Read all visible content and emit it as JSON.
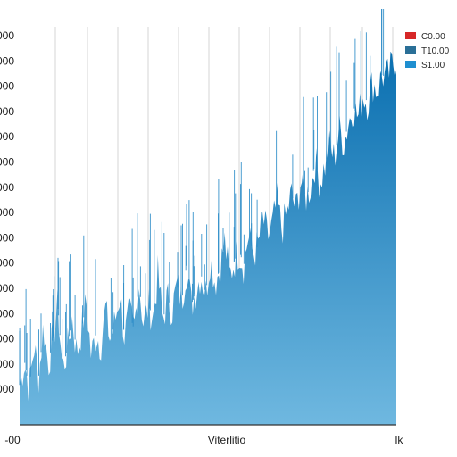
{
  "chart_data": {
    "type": "area",
    "title": "",
    "xlabel": "Viterlitio",
    "ylabel": "",
    "x_tick_labels": [
      "-00",
      "Viterlitio",
      "lk"
    ],
    "y_tick_labels": [
      "000",
      "000",
      "000",
      "000",
      "000",
      "000",
      "000",
      "000",
      "000",
      "000",
      "000",
      "000",
      "000",
      "000",
      "000"
    ],
    "grid": true,
    "legend_position": "top-right",
    "legend": [
      {
        "label": "C0.00",
        "color": "#d62728"
      },
      {
        "label": "T10.00",
        "color": "#2a6f97"
      },
      {
        "label": "S1.00",
        "color": "#1f8fd0"
      }
    ],
    "colors": {
      "fill_top": "#0a6fb0",
      "fill_bottom": "#6fb8e0",
      "spike": "#2c8cc8"
    },
    "series": [
      {
        "values": [
          0.1,
          0.16,
          0.09,
          0.2,
          0.12,
          0.25,
          0.15,
          0.22,
          0.3,
          0.14,
          0.19,
          0.27,
          0.18,
          0.24,
          0.31,
          0.17,
          0.23,
          0.2,
          0.29,
          0.21,
          0.26,
          0.33,
          0.22,
          0.28,
          0.24,
          0.36,
          0.25,
          0.3,
          0.27,
          0.38,
          0.26,
          0.32,
          0.29,
          0.35,
          0.31,
          0.4,
          0.3,
          0.34,
          0.38,
          0.33,
          0.42,
          0.36,
          0.39,
          0.46,
          0.37,
          0.41,
          0.44,
          0.4,
          0.48,
          0.43,
          0.45,
          0.52,
          0.47,
          0.5,
          0.56,
          0.49,
          0.53,
          0.58,
          0.54,
          0.62,
          0.57,
          0.6,
          0.66,
          0.61,
          0.65,
          0.7,
          0.67,
          0.74,
          0.71,
          0.76,
          0.8,
          0.77,
          0.83,
          0.81,
          0.86,
          0.84,
          0.88,
          0.87,
          0.9,
          0.92
        ]
      }
    ]
  }
}
